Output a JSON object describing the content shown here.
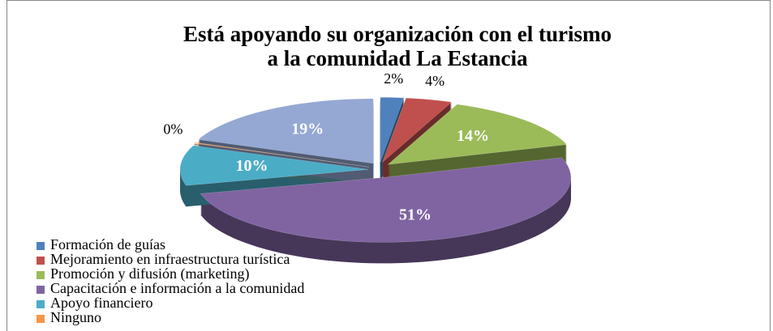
{
  "chart_data": {
    "type": "pie3d",
    "title": "Está apoyando su organización con el turismo a la comunidad La Estancia",
    "categories": [
      "Formación de guías",
      "Mejoramiento en infraestructura turística",
      "Promoción y difusión (marketing)",
      "Capacitación e información a la comunidad",
      "Apoyo financiero",
      "Ninguno",
      null
    ],
    "values": [
      2,
      4,
      14,
      51,
      10,
      0,
      19
    ],
    "value_labels": [
      "2%",
      "4%",
      "14%",
      "51%",
      "10%",
      "0%",
      "19%"
    ],
    "colors": [
      "#4f81bd",
      "#c0504d",
      "#9bbb59",
      "#8064a2",
      "#4bacc6",
      "#f79646",
      "#95a8d3"
    ],
    "legend": "bottom-left"
  }
}
